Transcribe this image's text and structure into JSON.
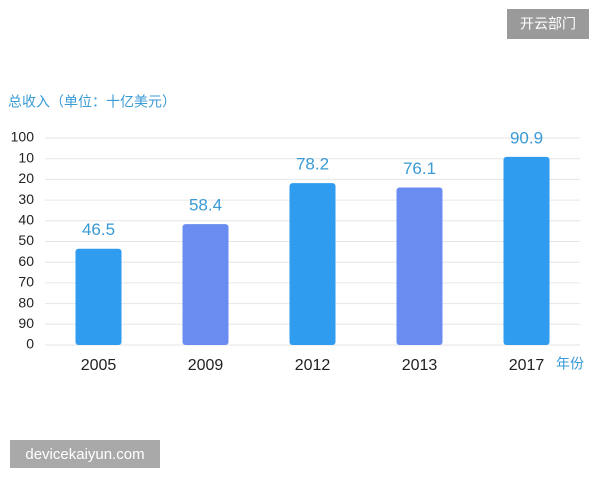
{
  "badge": "开云部门",
  "watermark": "devicekaiyun.com",
  "chart_data": {
    "type": "bar",
    "y_label": "总收入（单位：十亿美元）",
    "x_label": "年份",
    "categories": [
      "2005",
      "2009",
      "2012",
      "2013",
      "2017"
    ],
    "values": [
      46.5,
      58.4,
      78.2,
      76.1,
      90.9
    ],
    "colors": [
      "#2f9cf0",
      "#6a8cf0",
      "#2f9cf0",
      "#6a8cf0",
      "#2f9cf0"
    ],
    "value_label_color": "#3a9ad6",
    "ylim": [
      0,
      100
    ],
    "yticks": [
      0,
      {
        "value": 10,
        "label": "90"
      },
      {
        "value": 20,
        "label": "80"
      },
      {
        "value": 30,
        "label": "70"
      },
      {
        "value": 40,
        "label": "60"
      },
      50,
      {
        "value": 60,
        "label": "40"
      },
      {
        "value": 70,
        "label": "30"
      },
      {
        "value": 80,
        "label": "20"
      },
      {
        "value": 90,
        "label": "10"
      },
      100
    ],
    "grid": true
  }
}
